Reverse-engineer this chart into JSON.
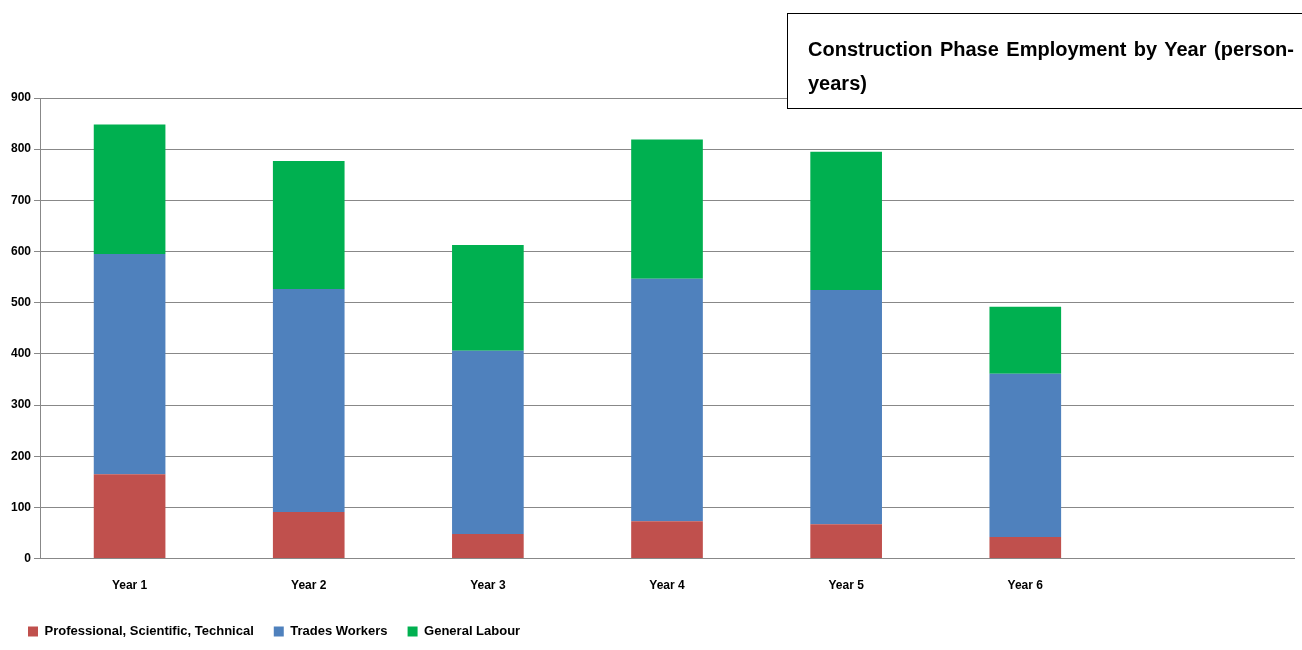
{
  "chart_data": {
    "type": "bar",
    "title": "Construction Phase Employment by Year (person-years)",
    "categories": [
      "Year 1",
      "Year 2",
      "Year 3",
      "Year 4",
      "Year 5",
      "Year 6",
      null
    ],
    "series": [
      {
        "name": "Professional, Scientific, Technical",
        "color": "#c0504d",
        "values": [
          165,
          91,
          48,
          73,
          67,
          42,
          null
        ]
      },
      {
        "name": "Trades Workers",
        "color": "#4f81bd",
        "values": [
          430,
          436,
          358,
          474,
          458,
          319,
          null
        ]
      },
      {
        "name": "General Labour",
        "color": "#00b050",
        "values": [
          253,
          250,
          207,
          272,
          270,
          131,
          null
        ]
      }
    ],
    "stacked": true,
    "ylim": [
      0,
      900
    ],
    "yticks": [
      0,
      100,
      200,
      300,
      400,
      500,
      600,
      700,
      800,
      900
    ],
    "grid": "y",
    "legend": "bottom"
  }
}
